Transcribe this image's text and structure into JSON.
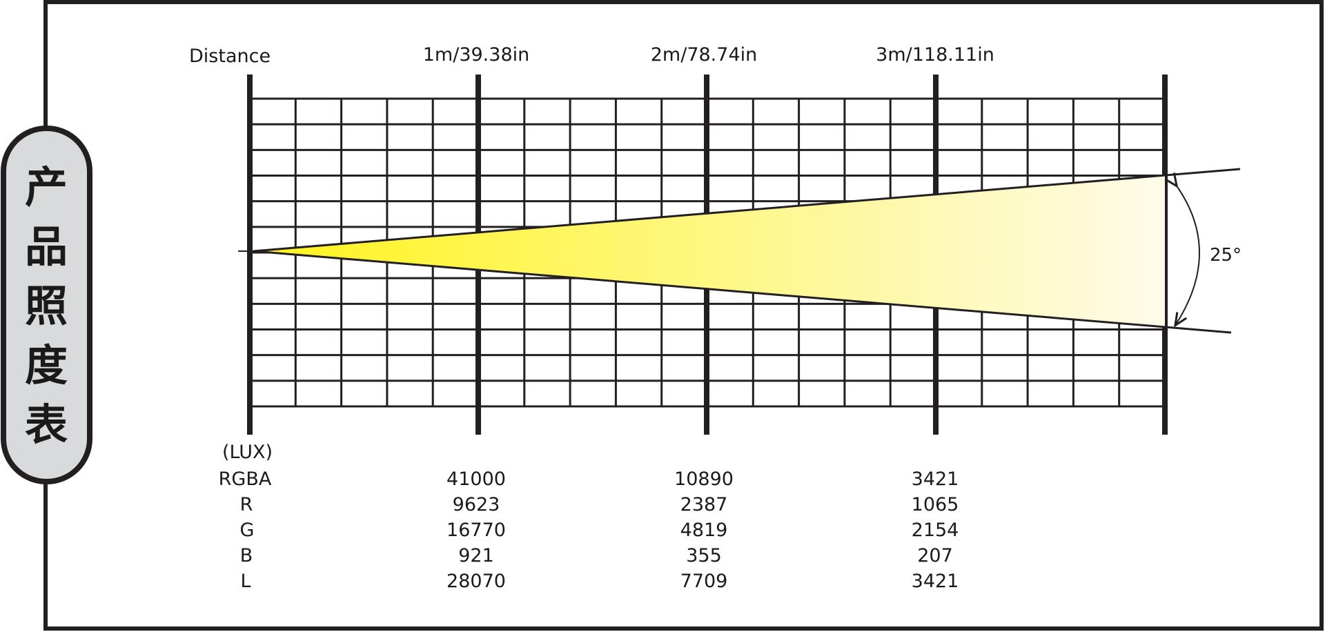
{
  "side_title": [
    "产",
    "品",
    "照",
    "度",
    "表"
  ],
  "header": {
    "distance_label": "Distance",
    "markers": [
      "1m/39.38in",
      "2m/78.74in",
      "3m/118.11in"
    ]
  },
  "beam": {
    "angle_label": "25°",
    "angle_degrees": 25,
    "colors": {
      "start": "#fff31a",
      "end": "#fefbea"
    }
  },
  "table": {
    "unit_label": "(LUX)",
    "rows": [
      {
        "label": "RGBA",
        "values": [
          "41000",
          "10890",
          "3421"
        ]
      },
      {
        "label": "R",
        "values": [
          "9623",
          "2387",
          "1065"
        ]
      },
      {
        "label": "G",
        "values": [
          "16770",
          "4819",
          "2154"
        ]
      },
      {
        "label": "B",
        "values": [
          "921",
          "355",
          "207"
        ]
      },
      {
        "label": "L",
        "values": [
          "28070",
          "7709",
          "3421"
        ]
      }
    ]
  },
  "colors": {
    "line": "#231f20",
    "pill_fill": "#d9dadb"
  }
}
